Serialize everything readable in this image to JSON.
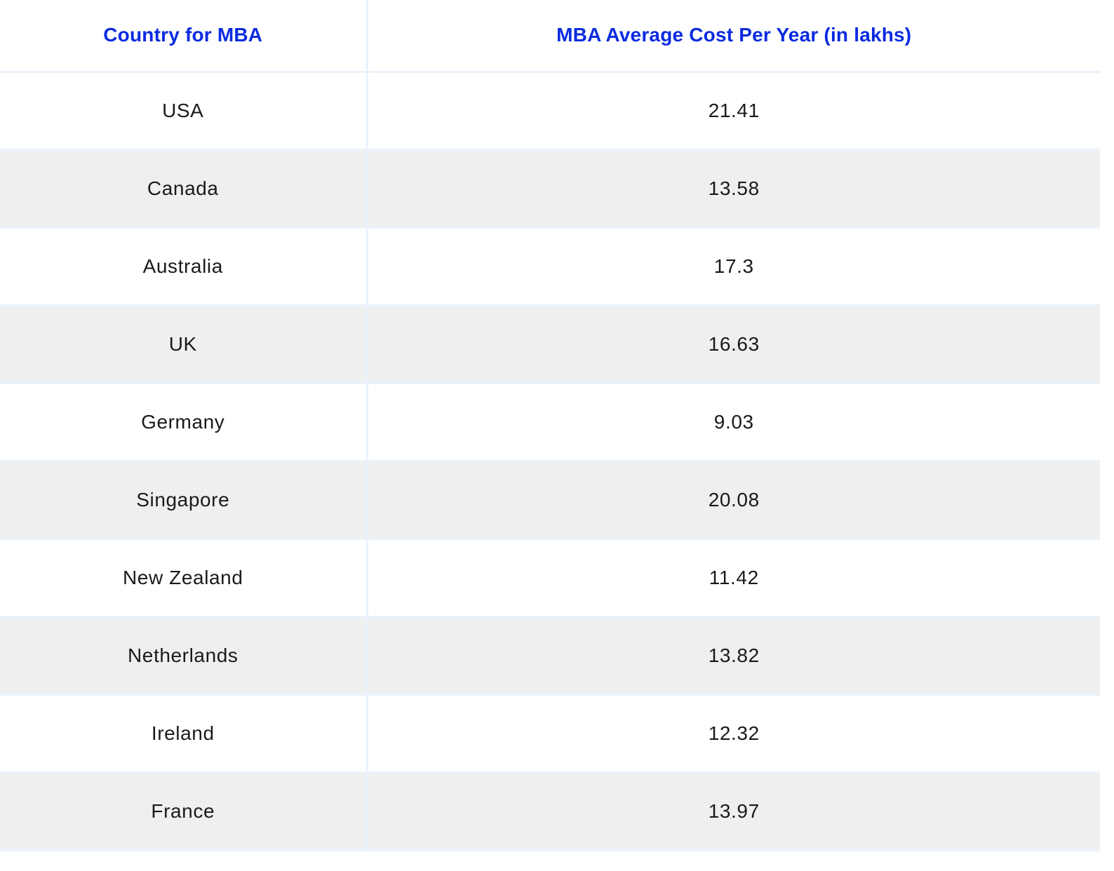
{
  "table": {
    "headers": [
      "Country for MBA",
      "MBA Average Cost Per Year (in lakhs)"
    ],
    "rows": [
      {
        "country": "USA",
        "cost": "21.41"
      },
      {
        "country": "Canada",
        "cost": "13.58"
      },
      {
        "country": "Australia",
        "cost": "17.3"
      },
      {
        "country": "UK",
        "cost": "16.63"
      },
      {
        "country": "Germany",
        "cost": "9.03"
      },
      {
        "country": "Singapore",
        "cost": "20.08"
      },
      {
        "country": "New Zealand",
        "cost": "11.42"
      },
      {
        "country": "Netherlands",
        "cost": "13.82"
      },
      {
        "country": "Ireland",
        "cost": "12.32"
      },
      {
        "country": "France",
        "cost": "13.97"
      }
    ]
  },
  "colors": {
    "header_text": "#0a2be0",
    "body_text": "#1a1a1a",
    "stripe_row": "#efefef",
    "grid_line": "#eaf2fb"
  }
}
